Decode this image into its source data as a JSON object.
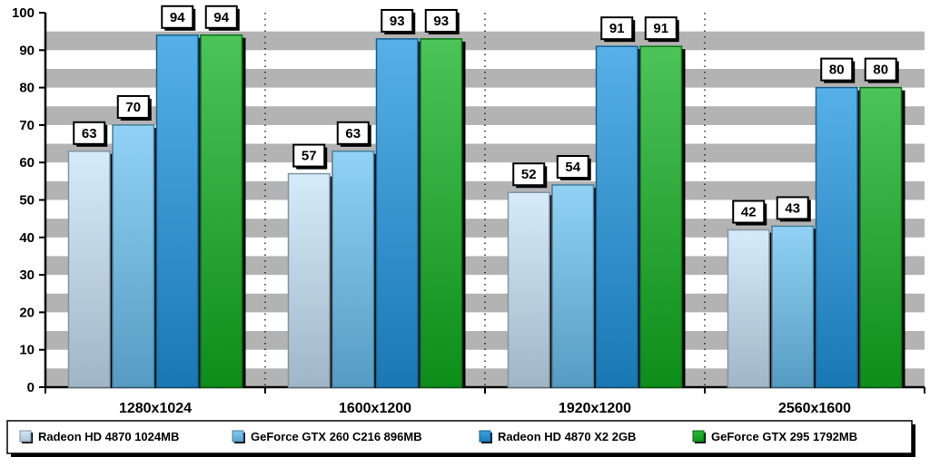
{
  "chart_data": {
    "type": "bar",
    "categories": [
      "1280x1024",
      "1600x1200",
      "1920x1200",
      "2560x1600"
    ],
    "series": [
      {
        "name": "Radeon HD 4870 1024MB",
        "values": [
          63,
          57,
          52,
          42
        ],
        "color": "#c8e4f8"
      },
      {
        "name": "GeForce GTX 260 C216 896MB",
        "values": [
          70,
          63,
          54,
          43
        ],
        "color": "#6cc3f2"
      },
      {
        "name": "Radeon HD 4870 X2 2GB",
        "values": [
          94,
          93,
          91,
          80
        ],
        "color": "#1f96e0"
      },
      {
        "name": "GeForce GTX 295 1792MB",
        "values": [
          94,
          93,
          91,
          80
        ],
        "color": "#10b020"
      }
    ],
    "ylim": [
      0,
      100
    ],
    "yticks": [
      0,
      10,
      20,
      30,
      40,
      50,
      60,
      70,
      80,
      90,
      100
    ],
    "title": "",
    "xlabel": "",
    "ylabel": "",
    "grid": "horizontal gray/white bands",
    "legend": "bottom"
  }
}
